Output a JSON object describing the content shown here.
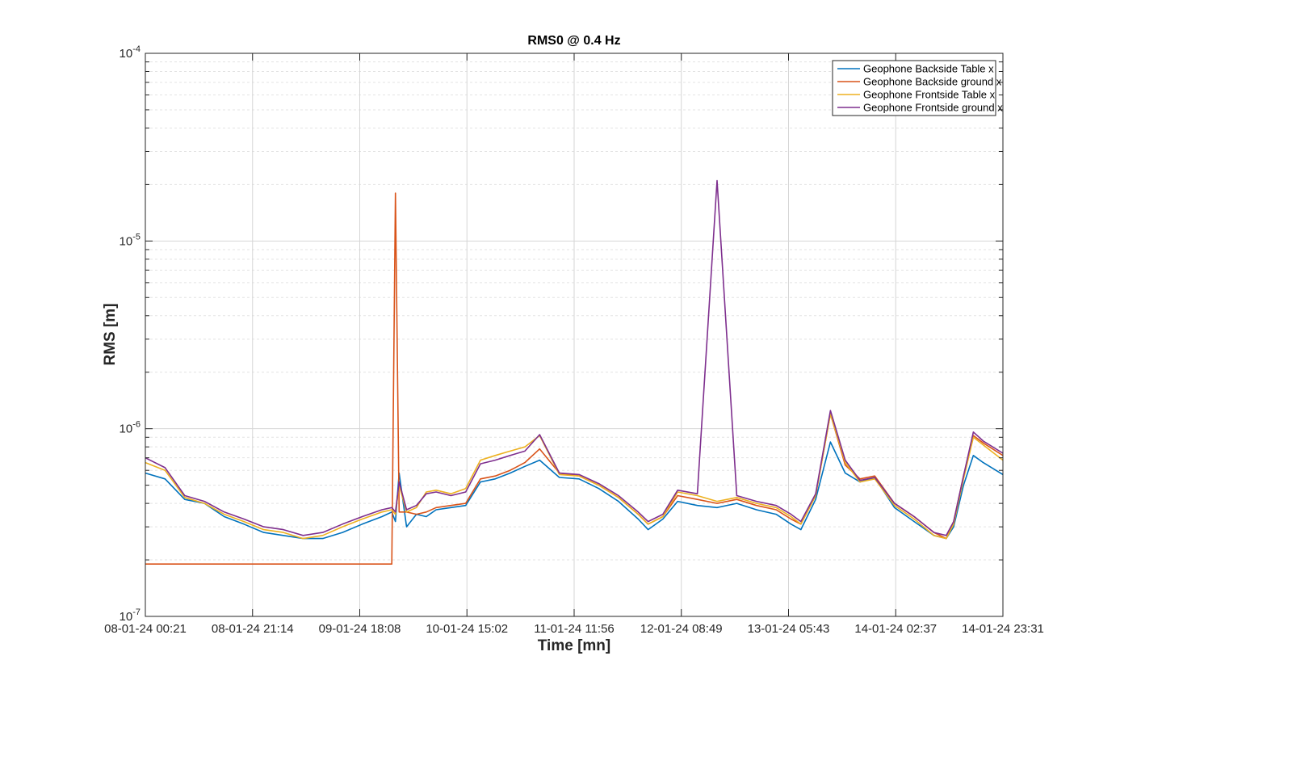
{
  "chart_data": {
    "type": "line",
    "title": "RMS0 @ 0.4 Hz",
    "xlabel": "Time [mn]",
    "ylabel": "RMS [m]",
    "yscale": "log",
    "ylim": [
      1e-07,
      0.0001
    ],
    "xlim": [
      "08-01-24 00:21",
      "14-01-24 23:31"
    ],
    "grid": true,
    "legend_position": "top-right",
    "x_tick_labels": [
      "08-01-24 00:21",
      "08-01-24 21:14",
      "09-01-24 18:08",
      "10-01-24 15:02",
      "11-01-24 11:56",
      "12-01-24 08:49",
      "13-01-24 05:43",
      "14-01-24 02:37",
      "14-01-24 23:31"
    ],
    "y_ticks": [
      {
        "base": "10",
        "exp": "-7"
      },
      {
        "base": "10",
        "exp": "-6"
      },
      {
        "base": "10",
        "exp": "-5"
      },
      {
        "base": "10",
        "exp": "-4"
      }
    ],
    "x_days": [
      0.0,
      0.16,
      0.32,
      0.48,
      0.64,
      0.8,
      0.96,
      1.12,
      1.28,
      1.44,
      1.6,
      1.76,
      1.92,
      2.0,
      2.03,
      2.06,
      2.12,
      2.2,
      2.28,
      2.36,
      2.48,
      2.6,
      2.72,
      2.84,
      2.96,
      3.08,
      3.2,
      3.36,
      3.52,
      3.68,
      3.84,
      4.0,
      4.08,
      4.2,
      4.32,
      4.48,
      4.64,
      4.8,
      4.96,
      5.12,
      5.24,
      5.32,
      5.44,
      5.56,
      5.68,
      5.8,
      5.92,
      6.08,
      6.24,
      6.4,
      6.5,
      6.56,
      6.64,
      6.72,
      6.8,
      6.96
    ],
    "series": [
      {
        "name": "Geophone Backside Table x",
        "color": "#0072BD",
        "values": [
          5.8e-07,
          5.4e-07,
          4.2e-07,
          4e-07,
          3.4e-07,
          3.1e-07,
          2.8e-07,
          2.7e-07,
          2.6e-07,
          2.6e-07,
          2.8e-07,
          3.1e-07,
          3.4e-07,
          3.6e-07,
          3.2e-07,
          5.8e-07,
          3e-07,
          3.5e-07,
          3.4e-07,
          3.7e-07,
          3.8e-07,
          3.9e-07,
          5.2e-07,
          5.4e-07,
          5.8e-07,
          6.3e-07,
          6.8e-07,
          5.5e-07,
          5.4e-07,
          4.8e-07,
          4.1e-07,
          3.3e-07,
          2.9e-07,
          3.3e-07,
          4.1e-07,
          3.9e-07,
          3.8e-07,
          4e-07,
          3.7e-07,
          3.5e-07,
          3.1e-07,
          2.9e-07,
          4.2e-07,
          8.5e-07,
          5.8e-07,
          5.2e-07,
          5.5e-07,
          3.8e-07,
          3.2e-07,
          2.7e-07,
          2.6e-07,
          3e-07,
          5e-07,
          7.2e-07,
          6.6e-07,
          5.7e-07
        ]
      },
      {
        "name": "Geophone Backside ground x",
        "color": "#D95319",
        "values": [
          1.9e-07,
          1.9e-07,
          1.9e-07,
          1.9e-07,
          1.9e-07,
          1.9e-07,
          1.9e-07,
          1.9e-07,
          1.9e-07,
          1.9e-07,
          1.9e-07,
          1.9e-07,
          1.9e-07,
          1.9e-07,
          1.8e-05,
          3.6e-07,
          3.6e-07,
          3.5e-07,
          3.6e-07,
          3.8e-07,
          3.9e-07,
          4e-07,
          5.4e-07,
          5.6e-07,
          6e-07,
          6.6e-07,
          7.8e-07,
          5.8e-07,
          5.6e-07,
          5e-07,
          4.3e-07,
          3.5e-07,
          3.1e-07,
          3.4e-07,
          4.4e-07,
          4.2e-07,
          4e-07,
          4.2e-07,
          3.9e-07,
          3.7e-07,
          3.3e-07,
          3.1e-07,
          4.4e-07,
          1.2e-06,
          6.4e-07,
          5.4e-07,
          5.6e-07,
          4e-07,
          3.4e-07,
          2.8e-07,
          2.6e-07,
          3.2e-07,
          5.6e-07,
          9.2e-07,
          8.4e-07,
          7.2e-07
        ]
      },
      {
        "name": "Geophone Frontside Table x",
        "color": "#EDB120",
        "values": [
          6.6e-07,
          6e-07,
          4.3e-07,
          4e-07,
          3.5e-07,
          3.2e-07,
          2.9e-07,
          2.8e-07,
          2.6e-07,
          2.7e-07,
          3e-07,
          3.3e-07,
          3.6e-07,
          3.7e-07,
          3.5e-07,
          5e-07,
          3.6e-07,
          3.8e-07,
          4.6e-07,
          4.7e-07,
          4.5e-07,
          4.8e-07,
          6.8e-07,
          7.2e-07,
          7.6e-07,
          8e-07,
          9.2e-07,
          5.7e-07,
          5.6e-07,
          5e-07,
          4.3e-07,
          3.5e-07,
          3.1e-07,
          3.4e-07,
          4.6e-07,
          4.4e-07,
          4.1e-07,
          4.3e-07,
          4e-07,
          3.8e-07,
          3.4e-07,
          3.1e-07,
          4.4e-07,
          1.2e-06,
          6.6e-07,
          5.2e-07,
          5.4e-07,
          3.9e-07,
          3.3e-07,
          2.7e-07,
          2.6e-07,
          3.1e-07,
          5.4e-07,
          9e-07,
          8.2e-07,
          6.8e-07
        ]
      },
      {
        "name": "Geophone Frontside ground x",
        "color": "#7E2F8E",
        "values": [
          7e-07,
          6.2e-07,
          4.4e-07,
          4.1e-07,
          3.6e-07,
          3.3e-07,
          3e-07,
          2.9e-07,
          2.7e-07,
          2.8e-07,
          3.1e-07,
          3.4e-07,
          3.7e-07,
          3.8e-07,
          3.6e-07,
          5.2e-07,
          3.7e-07,
          3.9e-07,
          4.5e-07,
          4.6e-07,
          4.4e-07,
          4.6e-07,
          6.5e-07,
          6.8e-07,
          7.2e-07,
          7.6e-07,
          9.3e-07,
          5.8e-07,
          5.7e-07,
          5.1e-07,
          4.4e-07,
          3.6e-07,
          3.2e-07,
          3.5e-07,
          4.7e-07,
          4.5e-07,
          2.1e-05,
          4.4e-07,
          4.1e-07,
          3.9e-07,
          3.5e-07,
          3.2e-07,
          4.5e-07,
          1.25e-06,
          6.8e-07,
          5.3e-07,
          5.5e-07,
          4e-07,
          3.4e-07,
          2.8e-07,
          2.7e-07,
          3.2e-07,
          5.6e-07,
          9.6e-07,
          8.6e-07,
          7.4e-07
        ]
      }
    ]
  }
}
